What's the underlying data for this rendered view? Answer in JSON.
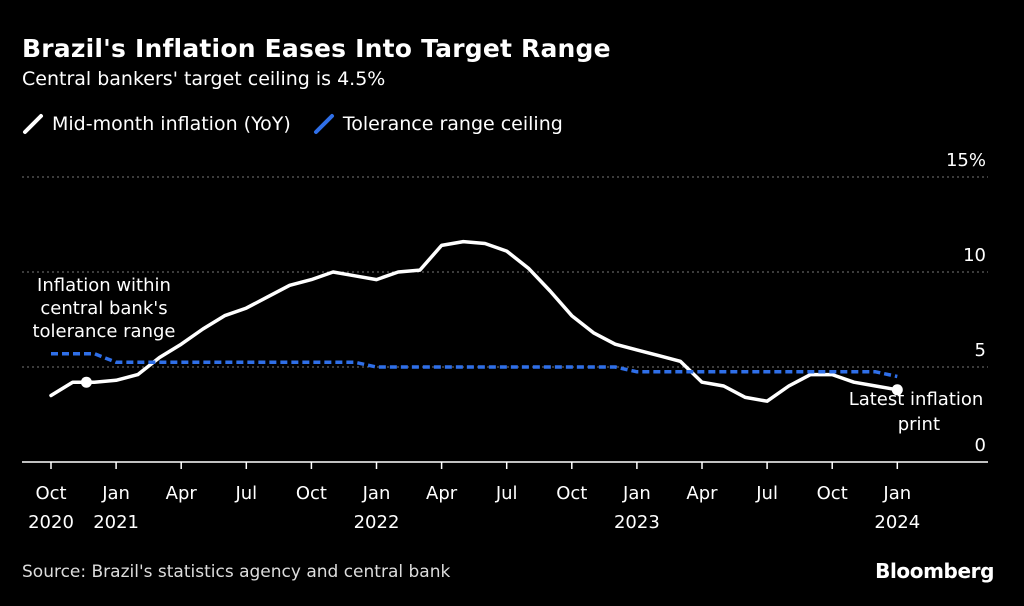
{
  "header": {
    "title": "Brazil's Inflation Eases Into Target Range",
    "subtitle": "Central bankers' target ceiling is 4.5%"
  },
  "footer": {
    "source": "Source: Brazil's statistics agency and central bank",
    "logo": "Bloomberg"
  },
  "colors": {
    "background": "#000000",
    "inflation_line": "#ffffff",
    "ceiling_line": "#2f6fe8",
    "grid": "#777777"
  },
  "chart_data": {
    "type": "line",
    "title": "Brazil's Inflation Eases Into Target Range",
    "subtitle": "Central bankers' target ceiling is 4.5%",
    "xlabel": "",
    "ylabel": "",
    "ylim": [
      0,
      15
    ],
    "xlim": [
      "2020-10",
      "2024-01"
    ],
    "y_ticks": [
      {
        "value": 0,
        "label": "0"
      },
      {
        "value": 5,
        "label": "5"
      },
      {
        "value": 10,
        "label": "10"
      },
      {
        "value": 15,
        "label": "15%"
      }
    ],
    "x_ticks": [
      {
        "index": 0,
        "label": "Oct",
        "year": "2020"
      },
      {
        "index": 3,
        "label": "Jan",
        "year": "2021"
      },
      {
        "index": 6,
        "label": "Apr",
        "year": ""
      },
      {
        "index": 9,
        "label": "Jul",
        "year": ""
      },
      {
        "index": 12,
        "label": "Oct",
        "year": ""
      },
      {
        "index": 15,
        "label": "Jan",
        "year": "2022"
      },
      {
        "index": 18,
        "label": "Apr",
        "year": ""
      },
      {
        "index": 21,
        "label": "Jul",
        "year": ""
      },
      {
        "index": 24,
        "label": "Oct",
        "year": ""
      },
      {
        "index": 27,
        "label": "Jan",
        "year": "2023"
      },
      {
        "index": 30,
        "label": "Apr",
        "year": ""
      },
      {
        "index": 33,
        "label": "Jul",
        "year": ""
      },
      {
        "index": 36,
        "label": "Oct",
        "year": ""
      },
      {
        "index": 39,
        "label": "Jan",
        "year": "2024"
      }
    ],
    "grid": true,
    "legend_position": "top-left",
    "series": [
      {
        "name": "Mid-month inflation (YoY)",
        "style": "solid",
        "x": [
          0,
          1,
          2,
          3,
          4,
          5,
          6,
          7,
          8,
          9,
          10,
          11,
          12,
          13,
          14,
          15,
          16,
          17,
          18,
          19,
          20,
          21,
          22,
          23,
          24,
          25,
          26,
          27,
          28,
          29,
          30,
          31,
          32,
          33,
          34,
          35,
          36,
          37,
          38,
          39
        ],
        "values": [
          3.5,
          4.2,
          4.2,
          4.3,
          4.6,
          5.5,
          6.2,
          7.0,
          7.7,
          8.1,
          8.7,
          9.3,
          9.6,
          10.0,
          9.8,
          9.6,
          10.0,
          10.1,
          11.4,
          11.6,
          11.5,
          11.1,
          10.2,
          9.0,
          7.7,
          6.8,
          6.2,
          5.9,
          5.6,
          5.3,
          4.2,
          4.0,
          3.4,
          3.2,
          4.0,
          4.6,
          4.6,
          4.2,
          4.0,
          3.8
        ]
      },
      {
        "name": "Tolerance range ceiling",
        "style": "dashed",
        "x": [
          0,
          2,
          3,
          4,
          5,
          6,
          7,
          8,
          9,
          10,
          11,
          12,
          13,
          14,
          15,
          16,
          17,
          18,
          19,
          20,
          21,
          22,
          23,
          24,
          25,
          26,
          27,
          28,
          29,
          30,
          31,
          32,
          33,
          34,
          35,
          36,
          37,
          38,
          39
        ],
        "values": [
          5.7,
          5.7,
          5.25,
          5.25,
          5.25,
          5.25,
          5.25,
          5.25,
          5.25,
          5.25,
          5.25,
          5.25,
          5.25,
          5.25,
          5.0,
          5.0,
          5.0,
          5.0,
          5.0,
          5.0,
          5.0,
          5.0,
          5.0,
          5.0,
          5.0,
          5.0,
          4.75,
          4.75,
          4.75,
          4.75,
          4.75,
          4.75,
          4.75,
          4.75,
          4.75,
          4.75,
          4.75,
          4.75,
          4.5
        ]
      }
    ],
    "annotations": [
      {
        "name": "within-range",
        "text": [
          "Inflation within",
          "central bank's",
          "tolerance range"
        ],
        "at_index": 2,
        "at_value": 4.2
      },
      {
        "name": "latest-print",
        "text": [
          "Latest inflation",
          "print"
        ],
        "at_index": 39,
        "at_value": 3.8
      }
    ]
  }
}
